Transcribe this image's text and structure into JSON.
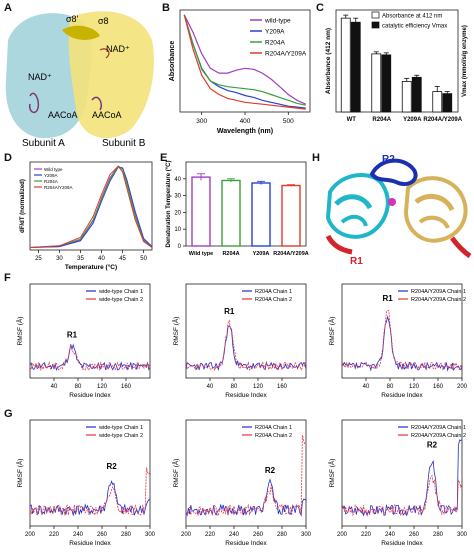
{
  "panels": {
    "A": {
      "label": "A",
      "texts": {
        "o8p": "σ8'",
        "o8": "σ8",
        "nad_left": "NAD⁺",
        "nad_right": "NAD⁺",
        "aacoa_left": "AACoA",
        "aacoa_right": "AACoA",
        "subunit_a": "Subunit A",
        "subunit_b": "Subunit B"
      }
    },
    "B": {
      "label": "B"
    },
    "C": {
      "label": "C"
    },
    "D": {
      "label": "D"
    },
    "E": {
      "label": "E"
    },
    "F": {
      "label": "F"
    },
    "G": {
      "label": "G"
    },
    "H": {
      "label": "H",
      "texts": {
        "r1": "R1",
        "r2": "R2"
      }
    }
  },
  "colors": {
    "wildtype": "#a03fbf",
    "y209a": "#2b3fd6",
    "r204a": "#3aa03a",
    "r204a_y209a": "#e03a2a",
    "chain1": "#1f2fd0",
    "chain2": "#e8323a",
    "subunit_a": "#9fd0d8",
    "subunit_b": "#f3e27a",
    "struct_cyan": "#1fb7c7",
    "struct_gold": "#d6b25a",
    "struct_blue": "#1b2fb0",
    "struct_red": "#d2242a"
  },
  "chart_data": [
    {
      "id": "B",
      "type": "line",
      "xlabel": "Wavelength (nm)",
      "ylabel": "Absorbance",
      "xlim": [
        250,
        550
      ],
      "xticks": [
        300,
        400,
        500
      ],
      "legend": "top-right",
      "series": [
        {
          "name": "wild-type",
          "color_key": "wildtype",
          "x": [
            260,
            280,
            300,
            320,
            340,
            360,
            380,
            400,
            420,
            440,
            460,
            480,
            500,
            520,
            540
          ],
          "y": [
            1.0,
            0.82,
            0.6,
            0.45,
            0.4,
            0.4,
            0.43,
            0.45,
            0.44,
            0.4,
            0.34,
            0.26,
            0.18,
            0.12,
            0.08
          ]
        },
        {
          "name": "Y209A",
          "color_key": "y209a",
          "x": [
            260,
            280,
            300,
            320,
            340,
            360,
            380,
            400,
            420,
            440,
            460,
            480,
            500,
            520,
            540
          ],
          "y": [
            1.0,
            0.7,
            0.45,
            0.32,
            0.26,
            0.22,
            0.2,
            0.17,
            0.15,
            0.12,
            0.1,
            0.08,
            0.06,
            0.05,
            0.04
          ]
        },
        {
          "name": "R204A",
          "color_key": "r204a",
          "x": [
            260,
            280,
            300,
            320,
            340,
            360,
            380,
            400,
            420,
            440,
            460,
            480,
            500,
            520,
            540
          ],
          "y": [
            1.0,
            0.7,
            0.44,
            0.32,
            0.28,
            0.26,
            0.25,
            0.24,
            0.23,
            0.21,
            0.18,
            0.15,
            0.12,
            0.09,
            0.07
          ]
        },
        {
          "name": "R204A/Y209A",
          "color_key": "r204a_y209a",
          "x": [
            260,
            280,
            300,
            320,
            340,
            360,
            380,
            400,
            420,
            440,
            460,
            480,
            500,
            520,
            540
          ],
          "y": [
            1.0,
            0.65,
            0.38,
            0.24,
            0.18,
            0.14,
            0.12,
            0.1,
            0.09,
            0.08,
            0.07,
            0.06,
            0.05,
            0.04,
            0.03
          ]
        }
      ]
    },
    {
      "id": "C",
      "type": "bar",
      "ylabel": "Absorbance (412 nm)",
      "ylabel_right": "Vmax (mmol/s/g enzyme)",
      "categories": [
        "WT",
        "R204A",
        "Y209A",
        "R204A/Y209A"
      ],
      "ylim": [
        0,
        1.0
      ],
      "legend": "top-right",
      "series": [
        {
          "name": "Absorbance at 412 nm",
          "values": [
            0.92,
            0.57,
            0.3,
            0.2
          ],
          "errors": [
            0.03,
            0.02,
            0.03,
            0.05
          ]
        },
        {
          "name": "catalytic efficiency Vmax",
          "values": [
            0.88,
            0.56,
            0.34,
            0.18
          ],
          "errors": [
            0.04,
            0.02,
            0.02,
            0.02
          ]
        }
      ]
    },
    {
      "id": "D",
      "type": "line",
      "xlabel": "Temperature (°C)",
      "ylabel": "dF/dT (normalized)",
      "xlim": [
        23,
        52
      ],
      "xticks": [
        25,
        30,
        35,
        40,
        45,
        50
      ],
      "ylim": [
        0,
        1.05
      ],
      "legend": "top-left",
      "series": [
        {
          "name": "Wild type",
          "color_key": "wildtype",
          "x": [
            23,
            30,
            35,
            38,
            40,
            42,
            44,
            45,
            46,
            48,
            50,
            52
          ],
          "y": [
            0.03,
            0.04,
            0.12,
            0.35,
            0.62,
            0.86,
            1.0,
            0.97,
            0.8,
            0.42,
            0.12,
            0.03
          ]
        },
        {
          "name": "Y209A",
          "color_key": "y209a",
          "x": [
            23,
            30,
            35,
            38,
            40,
            42,
            44,
            45,
            46,
            48,
            50,
            52
          ],
          "y": [
            0.03,
            0.04,
            0.11,
            0.32,
            0.58,
            0.82,
            0.99,
            0.98,
            0.84,
            0.46,
            0.14,
            0.04
          ]
        },
        {
          "name": "R204A",
          "color_key": "r204a",
          "x": [
            23,
            30,
            35,
            38,
            40,
            42,
            44,
            45,
            46,
            48,
            50,
            52
          ],
          "y": [
            0.03,
            0.05,
            0.13,
            0.36,
            0.6,
            0.84,
            1.0,
            0.96,
            0.79,
            0.4,
            0.11,
            0.03
          ]
        },
        {
          "name": "R204A/Y209A",
          "color_key": "r204a_y209a",
          "x": [
            23,
            30,
            35,
            38,
            40,
            42,
            44,
            45,
            46,
            48,
            50,
            52
          ],
          "y": [
            0.03,
            0.05,
            0.15,
            0.4,
            0.66,
            0.9,
            1.0,
            0.93,
            0.74,
            0.36,
            0.1,
            0.03
          ]
        }
      ]
    },
    {
      "id": "E",
      "type": "bar",
      "ylabel": "Denaturation Temperature (°C)",
      "categories": [
        "Wild type",
        "R204A",
        "Y209A",
        "R204A/Y209A"
      ],
      "ylim": [
        0,
        50
      ],
      "yticks": [
        0,
        10,
        20,
        30,
        40
      ],
      "series": [
        {
          "values": [
            41,
            39,
            37.5,
            36
          ],
          "errors": [
            2,
            1,
            1,
            0.5
          ],
          "color_keys": [
            "wildtype",
            "r204a",
            "y209a",
            "r204a_y209a"
          ]
        }
      ]
    },
    {
      "id": "F1",
      "type": "line",
      "xlabel": "Residue Index",
      "ylabel": "RMSF (Å)",
      "xlim": [
        0,
        200
      ],
      "xticks": [
        40,
        80,
        120,
        160
      ],
      "ylim": [
        0,
        6
      ],
      "annotation": "R1",
      "series": [
        {
          "name": "wide-type Chain 1",
          "color_key": "chain1"
        },
        {
          "name": "wide-type Chain 2",
          "color_key": "chain2"
        }
      ]
    },
    {
      "id": "F2",
      "type": "line",
      "xlabel": "Residue Index",
      "ylabel": "RMSF (Å)",
      "xlim": [
        0,
        200
      ],
      "xticks": [
        40,
        80,
        120,
        160
      ],
      "ylim": [
        0,
        6
      ],
      "annotation": "R1",
      "series": [
        {
          "name": "R204A Chain 1",
          "color_key": "chain1"
        },
        {
          "name": "R204A Chain 2",
          "color_key": "chain2"
        }
      ]
    },
    {
      "id": "F3",
      "type": "line",
      "xlabel": "Residue Index",
      "ylabel": "RMSF (Å)",
      "xlim": [
        0,
        200
      ],
      "xticks": [
        40,
        80,
        120,
        160,
        200
      ],
      "ylim": [
        0,
        6
      ],
      "annotation": "R1",
      "series": [
        {
          "name": "R204A/Y209A Chain 1",
          "color_key": "chain1"
        },
        {
          "name": "R204A/Y209A Chain 2",
          "color_key": "chain2"
        }
      ]
    },
    {
      "id": "G1",
      "type": "line",
      "xlabel": "Residue Index",
      "ylabel": "RMSF (Å)",
      "xlim": [
        200,
        300
      ],
      "xticks": [
        200,
        220,
        240,
        260,
        280,
        300
      ],
      "ylim": [
        0,
        5
      ],
      "annotation": "R2",
      "series": [
        {
          "name": "wide-type Chain 1",
          "color_key": "chain1"
        },
        {
          "name": "wide-type Chain 2",
          "color_key": "chain2"
        }
      ]
    },
    {
      "id": "G2",
      "type": "line",
      "xlabel": "Residue Index",
      "ylabel": "RMSF (Å)",
      "xlim": [
        200,
        300
      ],
      "xticks": [
        200,
        220,
        240,
        260,
        280,
        300
      ],
      "ylim": [
        0,
        5
      ],
      "annotation": "R2",
      "series": [
        {
          "name": "R204A Chain 1",
          "color_key": "chain1"
        },
        {
          "name": "R204A Chain 2",
          "color_key": "chain2"
        }
      ]
    },
    {
      "id": "G3",
      "type": "line",
      "xlabel": "Residue Index",
      "ylabel": "RMSF (Å)",
      "xlim": [
        200,
        300
      ],
      "xticks": [
        200,
        220,
        240,
        260,
        280,
        300
      ],
      "ylim": [
        0,
        5
      ],
      "annotation": "R2",
      "series": [
        {
          "name": "R204A/Y209A Chain 1",
          "color_key": "chain1"
        },
        {
          "name": "R204A/Y209A Chain 2",
          "color_key": "chain2"
        }
      ]
    }
  ]
}
